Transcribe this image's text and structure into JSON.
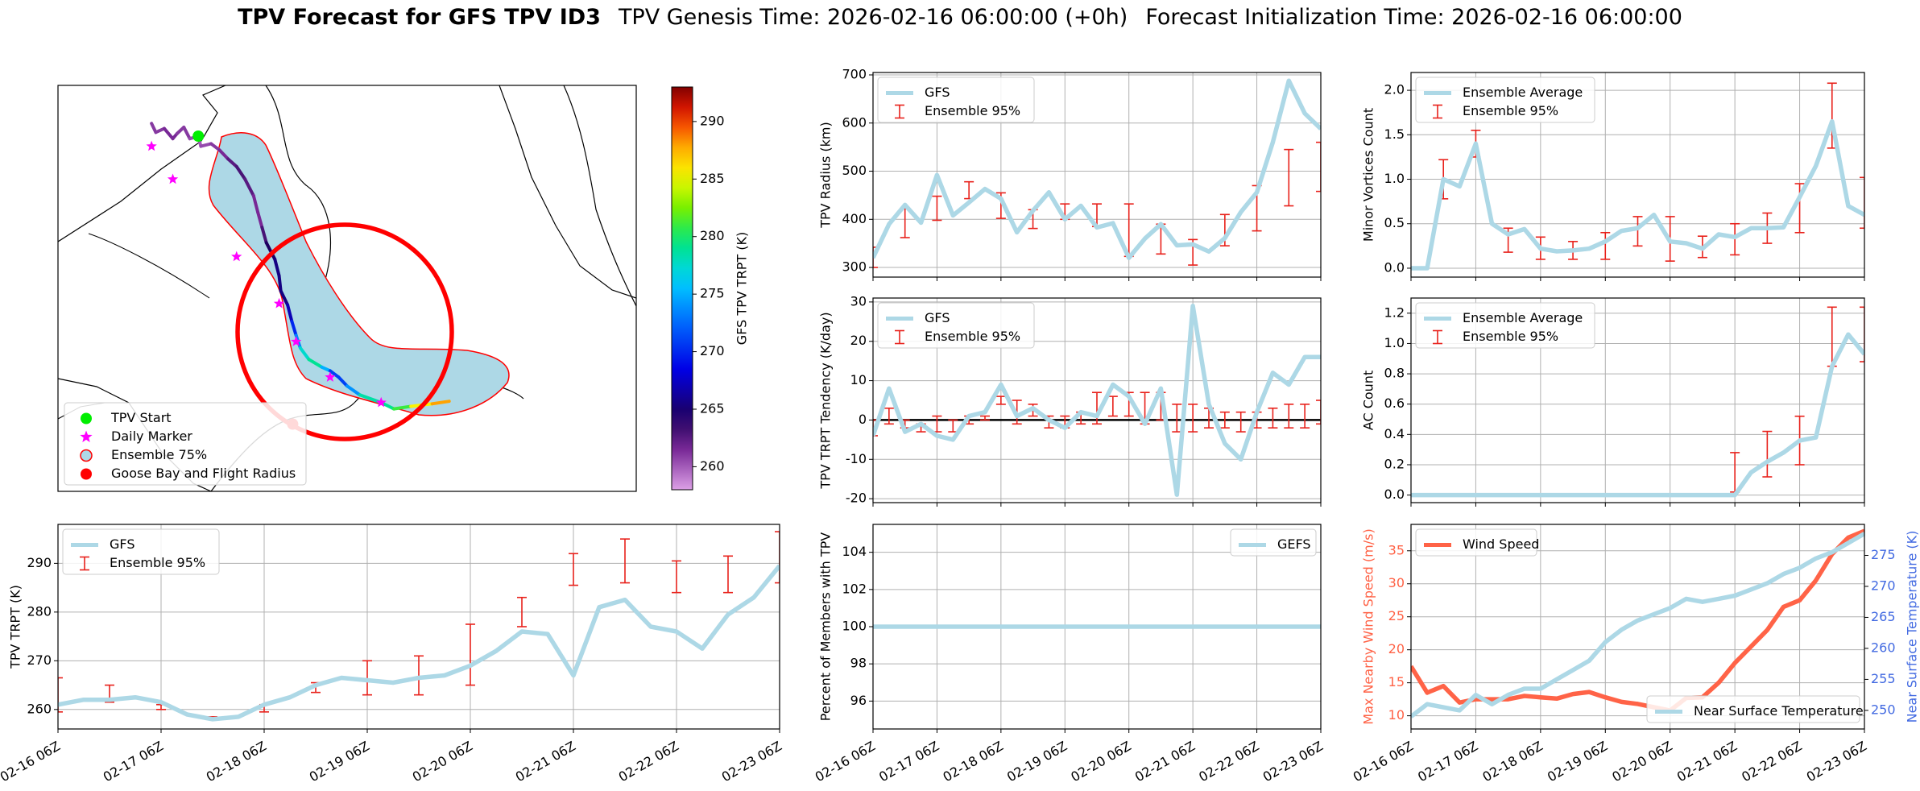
{
  "title": {
    "bold": "TPV Forecast for GFS TPV ID3",
    "genesis": "TPV Genesis Time: 2026-02-16 06:00:00 (+0h)",
    "init": "Forecast Initialization Time: 2026-02-16 06:00:00"
  },
  "colors": {
    "gfs_line": "#add8e6",
    "err_bar": "#e8211b",
    "wind": "#ff6347",
    "temp": "#4169e1",
    "circle": "#ff0000",
    "start": "#00ee00",
    "daily": "#ff00ff",
    "shade_fill": "#add8e6",
    "shade_edge": "#ff0000"
  },
  "shared_x": {
    "tick_labels": [
      "02-16 06Z",
      "02-17 06Z",
      "02-18 06Z",
      "02-19 06Z",
      "02-20 06Z",
      "02-21 06Z",
      "02-22 06Z",
      "02-23 06Z"
    ],
    "range": [
      0,
      168
    ]
  },
  "map": {
    "colorbar": {
      "label": "GFS TPV TRPT (K)",
      "ticks": [
        "290",
        "285",
        "280",
        "275",
        "270",
        "265",
        "260"
      ],
      "range": [
        258,
        293
      ]
    },
    "legend": [
      "TPV Start",
      "Daily Marker",
      "Ensemble 75%",
      "Goose Bay and Flight Radius"
    ],
    "track": {
      "lon": [
        -77,
        -76.5,
        -75.5,
        -74.5,
        -74.0,
        -73.2,
        -72.5,
        -71.5,
        -71.2,
        -70.0,
        -69.0,
        -68.0,
        -67.0,
        -66.0,
        -65.0,
        -64.5,
        -64.0,
        -63.5,
        -62.5,
        -62.0,
        -61.8,
        -61.0,
        -60.5,
        -60.0,
        -59.5,
        -58.5,
        -57.0,
        -56.0,
        -55.0,
        -54.0,
        -52.5,
        -50.0,
        -48.5,
        -46.5,
        -44.0,
        -42.0
      ],
      "lat": [
        77.0,
        76.3,
        76.6,
        75.8,
        76.2,
        76.7,
        75.8,
        76.0,
        75.2,
        75.4,
        74.9,
        74.2,
        73.6,
        72.6,
        71.3,
        70.0,
        68.8,
        67.6,
        66.3,
        65.0,
        63.8,
        62.7,
        61.4,
        60.3,
        59.3,
        58.4,
        57.8,
        57.5,
        57.0,
        56.3,
        55.6,
        55.0,
        54.5,
        54.7,
        54.9,
        55.1
      ],
      "trpt": [
        261,
        261,
        261,
        262,
        261,
        261,
        261,
        260,
        260,
        261,
        261,
        262,
        263,
        263,
        262,
        261,
        262,
        264,
        265,
        266,
        265,
        266,
        268,
        272,
        275,
        280,
        278,
        272,
        270,
        272,
        276,
        281,
        277,
        285,
        286,
        290
      ]
    },
    "daily_markers": {
      "lon": [
        -77.0,
        -74.5,
        -67.0,
        -62.0,
        -60.0,
        -56.0,
        -50.0
      ],
      "lat": [
        75.2,
        72.6,
        66.5,
        62.8,
        59.8,
        57.0,
        55.0
      ]
    },
    "start": {
      "lon": -71.5,
      "lat": 76.0
    },
    "goose_bay": {
      "lon": -60.4,
      "lat": 53.3
    }
  },
  "chart_data": [
    {
      "id": "radius",
      "type": "line",
      "ylabel": "TPV Radius (km)",
      "ylim": [
        280,
        705
      ],
      "yticks": [
        300,
        400,
        500,
        600,
        700
      ],
      "legend": [
        "GFS",
        "Ensemble 95%"
      ],
      "legend_pos": "upper-left",
      "series": [
        {
          "name": "GFS",
          "x": [
            0,
            6,
            12,
            18,
            24,
            30,
            36,
            42,
            48,
            54,
            60,
            66,
            72,
            78,
            84,
            90,
            96,
            102,
            108,
            114,
            120,
            126,
            132,
            138,
            144,
            150,
            156,
            162,
            168
          ],
          "values": [
            320,
            390,
            430,
            393,
            492,
            408,
            435,
            463,
            443,
            373,
            418,
            456,
            400,
            428,
            383,
            392,
            320,
            360,
            390,
            346,
            348,
            333,
            361,
            415,
            456,
            560,
            688,
            620,
            588
          ]
        }
      ],
      "errors": {
        "x": [
          0,
          12,
          24,
          36,
          48,
          60,
          72,
          84,
          96,
          108,
          120,
          132,
          144,
          156,
          168
        ],
        "low": [
          300,
          362,
          398,
          443,
          402,
          381,
          400,
          385,
          323,
          328,
          305,
          345,
          376,
          428,
          458
        ],
        "high": [
          342,
          422,
          448,
          478,
          455,
          420,
          432,
          432,
          432,
          390,
          358,
          410,
          470,
          545,
          560
        ]
      }
    },
    {
      "id": "tendency",
      "type": "line",
      "ylabel": "TPV TRPT Tendency (K/day)",
      "ylim": [
        -21,
        31
      ],
      "yticks": [
        -20,
        -10,
        0,
        10,
        20,
        30
      ],
      "zero_line": true,
      "legend": [
        "GFS",
        "Ensemble 95%"
      ],
      "legend_pos": "upper-left",
      "series": [
        {
          "name": "GFS",
          "x": [
            0,
            6,
            12,
            18,
            24,
            30,
            36,
            42,
            48,
            54,
            60,
            66,
            72,
            78,
            84,
            90,
            96,
            102,
            108,
            114,
            120,
            126,
            132,
            138,
            144,
            150,
            156,
            162,
            168
          ],
          "values": [
            -4,
            8,
            -3,
            -1,
            -4,
            -5,
            1,
            2,
            9,
            1,
            3,
            0,
            -2,
            2,
            1,
            9,
            6,
            -1,
            8,
            -19,
            29,
            4,
            -6,
            -10,
            2,
            12,
            9,
            16,
            16
          ]
        }
      ],
      "errors": {
        "x": [
          0,
          6,
          12,
          18,
          24,
          30,
          36,
          42,
          48,
          54,
          60,
          66,
          72,
          78,
          84,
          90,
          96,
          102,
          108,
          114,
          120,
          126,
          132,
          138,
          144,
          150,
          156,
          162,
          168
        ],
        "low": [
          -4,
          -1,
          -2,
          -3,
          -3,
          -3,
          -1,
          0,
          4,
          -1,
          1,
          -2,
          -2,
          -1,
          -1,
          1,
          1,
          -1,
          0,
          -3,
          -3,
          -2,
          -2,
          -3,
          -2,
          -2,
          -2,
          -2,
          -1
        ],
        "high": [
          0,
          3,
          0,
          -1,
          1,
          0,
          1,
          1,
          6,
          5,
          4,
          1,
          1,
          2,
          7,
          6,
          7,
          7,
          7,
          4,
          4,
          3,
          2,
          2,
          2,
          3,
          4,
          4,
          5
        ]
      }
    },
    {
      "id": "members",
      "type": "line",
      "ylabel": "Percent of Members with TPV",
      "ylim": [
        94.5,
        105.5
      ],
      "yticks": [
        96,
        98,
        100,
        102,
        104
      ],
      "legend": [
        "GEFS"
      ],
      "legend_pos": "upper-right",
      "series": [
        {
          "name": "GEFS",
          "x": [
            0,
            168
          ],
          "values": [
            100,
            100
          ]
        }
      ]
    },
    {
      "id": "minor",
      "type": "line",
      "ylabel": "Minor Vortices Count",
      "ylim": [
        -0.1,
        2.2
      ],
      "yticks": [
        0.0,
        0.5,
        1.0,
        1.5,
        2.0
      ],
      "legend": [
        "Ensemble Average",
        "Ensemble 95%"
      ],
      "legend_pos": "upper-left",
      "series": [
        {
          "name": "Ensemble Average",
          "x": [
            0,
            6,
            12,
            18,
            24,
            30,
            36,
            42,
            48,
            54,
            60,
            66,
            72,
            78,
            84,
            90,
            96,
            102,
            108,
            114,
            120,
            126,
            132,
            138,
            144,
            150,
            156,
            162,
            168
          ],
          "values": [
            0,
            0,
            1.0,
            0.92,
            1.4,
            0.5,
            0.38,
            0.44,
            0.22,
            0.19,
            0.2,
            0.22,
            0.3,
            0.42,
            0.45,
            0.6,
            0.3,
            0.28,
            0.22,
            0.38,
            0.35,
            0.45,
            0.45,
            0.46,
            0.8,
            1.15,
            1.65,
            0.7,
            0.6
          ]
        }
      ],
      "errors": {
        "x": [
          0,
          12,
          24,
          36,
          48,
          60,
          72,
          84,
          96,
          108,
          120,
          132,
          144,
          156,
          168
        ],
        "low": [
          0,
          0.78,
          1.25,
          0.18,
          0.1,
          0.1,
          0.1,
          0.25,
          0.08,
          0.12,
          0.15,
          0.28,
          0.4,
          1.35,
          0.45
        ],
        "high": [
          0,
          1.22,
          1.55,
          0.45,
          0.35,
          0.3,
          0.4,
          0.58,
          0.58,
          0.36,
          0.5,
          0.62,
          0.95,
          2.08,
          1.02
        ]
      }
    },
    {
      "id": "ac",
      "type": "line",
      "ylabel": "AC Count",
      "ylim": [
        -0.05,
        1.3
      ],
      "yticks": [
        0.0,
        0.2,
        0.4,
        0.6,
        0.8,
        1.0,
        1.2
      ],
      "legend": [
        "Ensemble Average",
        "Ensemble 95%"
      ],
      "legend_pos": "upper-left",
      "series": [
        {
          "name": "Ensemble Average",
          "x": [
            0,
            6,
            12,
            18,
            24,
            30,
            36,
            42,
            48,
            54,
            60,
            66,
            72,
            78,
            84,
            90,
            96,
            102,
            108,
            114,
            120,
            126,
            132,
            138,
            144,
            150,
            156,
            162,
            168
          ],
          "values": [
            0,
            0,
            0,
            0,
            0,
            0,
            0,
            0,
            0,
            0,
            0,
            0,
            0,
            0,
            0,
            0,
            0,
            0,
            0,
            0,
            0,
            0.15,
            0.22,
            0.28,
            0.36,
            0.38,
            0.85,
            1.06,
            0.93
          ]
        }
      ],
      "errors": {
        "x": [
          0,
          12,
          24,
          36,
          48,
          60,
          72,
          84,
          96,
          108,
          120,
          132,
          144,
          156,
          168
        ],
        "low": [
          0,
          0,
          0,
          0,
          0,
          0,
          0,
          0,
          0,
          0,
          0.02,
          0.12,
          0.2,
          0.85,
          0.88
        ],
        "high": [
          0,
          0,
          0,
          0,
          0,
          0,
          0,
          0,
          0,
          0,
          0.28,
          0.42,
          0.52,
          1.24,
          1.24
        ]
      }
    },
    {
      "id": "trpt",
      "type": "line",
      "ylabel": "TPV TRPT (K)",
      "ylim": [
        256,
        298
      ],
      "yticks": [
        260,
        270,
        280,
        290
      ],
      "legend": [
        "GFS",
        "Ensemble 95%"
      ],
      "legend_pos": "upper-left",
      "series": [
        {
          "name": "GFS",
          "x": [
            0,
            6,
            12,
            18,
            24,
            30,
            36,
            42,
            48,
            54,
            60,
            66,
            72,
            78,
            84,
            90,
            96,
            102,
            108,
            114,
            120,
            126,
            132,
            138,
            144,
            150,
            156,
            162,
            168
          ],
          "values": [
            261,
            262,
            262,
            262.5,
            261.5,
            259,
            258,
            258.5,
            261,
            262.5,
            265,
            266.5,
            266,
            265.5,
            266.5,
            267,
            269,
            272,
            276,
            275.5,
            267,
            281,
            282.5,
            277,
            276,
            272.5,
            279.5,
            283,
            289.5
          ]
        }
      ],
      "errors": {
        "x": [
          0,
          12,
          24,
          36,
          48,
          60,
          72,
          84,
          96,
          108,
          120,
          132,
          144,
          156,
          168
        ],
        "low": [
          259.5,
          261.5,
          260,
          258,
          259.5,
          263.5,
          263,
          263,
          265,
          277,
          285.5,
          286,
          284,
          284,
          286
        ],
        "high": [
          266.5,
          265,
          261,
          258.5,
          261,
          265.5,
          270,
          271,
          277.5,
          283,
          292,
          295,
          290.5,
          291.5,
          296.5
        ]
      }
    },
    {
      "id": "wind_temp",
      "type": "line",
      "ylabel": "Max Nearby Wind Speed (m/s)",
      "ylabel_right": "Near Surface Temperature (K)",
      "ylim": [
        8,
        39
      ],
      "yticks": [
        10,
        15,
        20,
        25,
        30,
        35
      ],
      "ylim_right": [
        247,
        280
      ],
      "yticks_right": [
        250,
        255,
        260,
        265,
        270,
        275
      ],
      "legend": [
        "Wind Speed",
        "Near Surface Temperature"
      ],
      "series": [
        {
          "name": "Wind Speed",
          "x": [
            0,
            6,
            12,
            18,
            24,
            30,
            36,
            42,
            48,
            54,
            60,
            66,
            72,
            78,
            84,
            90,
            96,
            102,
            108,
            114,
            120,
            126,
            132,
            138,
            144,
            150,
            156,
            162,
            168
          ],
          "values": [
            17.5,
            13.5,
            14.5,
            12.0,
            12.5,
            12.5,
            12.5,
            13.0,
            12.8,
            12.6,
            13.3,
            13.6,
            12.8,
            12.1,
            11.8,
            11.3,
            10.8,
            12.7,
            12.8,
            15.0,
            18.0,
            20.5,
            23.0,
            26.5,
            27.5,
            30.5,
            34.5,
            37.0,
            38.0
          ]
        },
        {
          "name": "Near Surface Temperature",
          "x": [
            0,
            6,
            12,
            18,
            24,
            30,
            36,
            42,
            48,
            54,
            60,
            66,
            72,
            78,
            84,
            90,
            96,
            102,
            108,
            114,
            120,
            126,
            132,
            138,
            144,
            150,
            156,
            162,
            168
          ],
          "values": [
            249.0,
            251.0,
            250.5,
            250.0,
            252.5,
            251.0,
            252.5,
            253.5,
            253.5,
            255.0,
            256.5,
            258.0,
            261.0,
            263.0,
            264.5,
            265.5,
            266.5,
            268.0,
            267.5,
            268.0,
            268.5,
            269.5,
            270.5,
            272.0,
            273.0,
            274.5,
            275.5,
            277.0,
            278.5
          ]
        }
      ]
    }
  ]
}
